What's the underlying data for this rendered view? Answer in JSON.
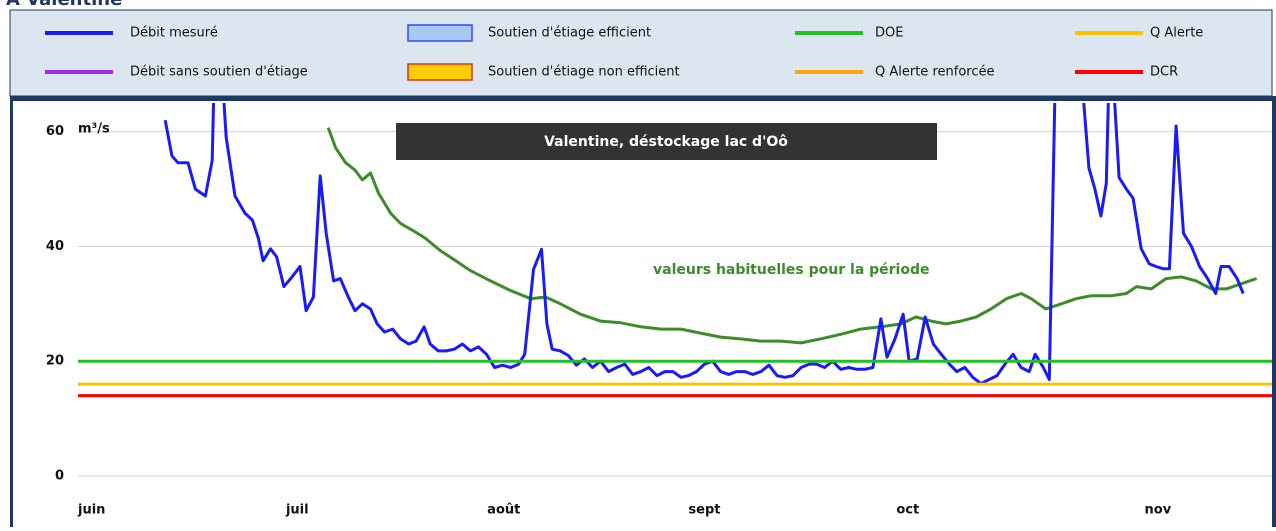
{
  "chart_data": {
    "type": "line",
    "title": "A Valentine",
    "banner": "Valentine, déstockage lac d'Oô",
    "y_unit": "m³/s",
    "annotation": "valeurs habituelles pour la période",
    "ylim": [
      0,
      65
    ],
    "yticks": [
      0,
      20,
      40,
      60
    ],
    "xlim": [
      0,
      178
    ],
    "xticks": [
      {
        "value": 0,
        "label": "juin"
      },
      {
        "value": 31,
        "label": "juil"
      },
      {
        "value": 61,
        "label": "août"
      },
      {
        "value": 91,
        "label": "sept"
      },
      {
        "value": 122,
        "label": "oct"
      },
      {
        "value": 159,
        "label": "nov"
      }
    ],
    "grid": true,
    "series": [
      {
        "name": "Débit mesuré",
        "color": "#1a1aff",
        "style": "line",
        "x": [
          13.0,
          14.0,
          14.9,
          16.4,
          17.5,
          19.0,
          20.0,
          20.3,
          21.5,
          22.1,
          23.4,
          24.9,
          26.0,
          26.9,
          27.6,
          28.7,
          29.6,
          30.7,
          31.9,
          33.1,
          34.0,
          35.1,
          36.1,
          37.0,
          38.1,
          39.1,
          40.3,
          41.3,
          42.4,
          43.6,
          44.6,
          45.7,
          46.9,
          48.1,
          49.3,
          50.4,
          51.6,
          52.5,
          53.7,
          54.9,
          56.1,
          57.3,
          58.5,
          59.7,
          60.9,
          62.1,
          63.3,
          64.5,
          65.7,
          66.6,
          67.9,
          69.1,
          69.9,
          70.7,
          71.9,
          73.1,
          74.3,
          75.5,
          76.7,
          77.9,
          79.1,
          80.3,
          81.5,
          82.7,
          83.9,
          85.1,
          86.3,
          87.5,
          88.7,
          89.9,
          91.0,
          92.2,
          93.4,
          94.6,
          95.8,
          97.0,
          98.2,
          99.4,
          100.6,
          101.8,
          103.0,
          104.2,
          105.4,
          106.6,
          107.8,
          109.0,
          110.1,
          111.3,
          112.5,
          113.7,
          114.9,
          116.1,
          117.3,
          118.5,
          119.7,
          120.6,
          121.8,
          123.0,
          123.9,
          125.1,
          126.3,
          127.5,
          128.7,
          129.9,
          131.0,
          132.2,
          133.4,
          134.6,
          135.8,
          137.0,
          138.2,
          139.4,
          140.6,
          141.8,
          142.7,
          143.9,
          144.8,
          145.7,
          149.6,
          150.7,
          151.6,
          152.5,
          153.3,
          153.7,
          154.3,
          155.2,
          156.3,
          157.3,
          158.5,
          159.7,
          160.7,
          161.8,
          162.7,
          163.7,
          164.8,
          166.0,
          167.2,
          168.4,
          169.6,
          170.4,
          171.6,
          172.8,
          173.7
        ],
        "values": [
          62,
          55.8,
          54.6,
          54.6,
          50,
          48.8,
          55,
          70,
          70,
          59,
          48.8,
          45.8,
          44.6,
          41.4,
          37.5,
          39.6,
          38.2,
          33,
          34.7,
          36.5,
          28.8,
          31.2,
          52.3,
          42.3,
          34,
          34.4,
          31.2,
          28.8,
          30,
          29.1,
          26.5,
          25.1,
          25.6,
          23.9,
          23,
          23.5,
          26,
          23,
          21.8,
          21.8,
          22.1,
          23,
          21.8,
          22.5,
          21.2,
          18.9,
          19.3,
          18.9,
          19.5,
          21.2,
          36,
          39.5,
          26.5,
          22.1,
          21.8,
          21,
          19.3,
          20.4,
          18.9,
          20,
          18.2,
          18.9,
          19.5,
          17.7,
          18.2,
          18.9,
          17.5,
          18.2,
          18.2,
          17.2,
          17.5,
          18.2,
          19.5,
          20,
          18.2,
          17.7,
          18.2,
          18.2,
          17.7,
          18.2,
          19.3,
          17.5,
          17.2,
          17.5,
          18.9,
          19.5,
          19.5,
          18.9,
          20,
          18.6,
          18.9,
          18.6,
          18.6,
          18.9,
          27.4,
          20.7,
          23.9,
          28.2,
          20,
          20.4,
          27.7,
          23,
          21.2,
          19.5,
          18.2,
          18.9,
          17.2,
          16.1,
          16.8,
          17.5,
          19.5,
          21.2,
          18.9,
          18.2,
          21.2,
          18.9,
          16.8,
          70,
          70,
          53.7,
          50,
          45.3,
          51,
          70,
          70,
          52,
          50,
          48.4,
          39.6,
          37,
          36.5,
          36.1,
          36.1,
          61,
          42.3,
          40,
          36.5,
          34.4,
          31.8,
          36.5,
          36.5,
          34.4,
          31.8
        ]
      },
      {
        "name": "Soutien d'étiage efficient",
        "color": "#a9c9f2",
        "border": "#2a4bff",
        "style": "area"
      },
      {
        "name": "DOE",
        "color": "#22c020",
        "style": "hline",
        "value": 20
      },
      {
        "name": "Q Alerte",
        "color": "#ffc000",
        "style": "hline",
        "value": 16
      },
      {
        "name": "Débit sans soutien d'étiage",
        "color": "#9b30e6",
        "style": "line"
      },
      {
        "name": "Soutien d'étiage non efficient",
        "color": "#ffcc00",
        "border": "#e0301e",
        "style": "area"
      },
      {
        "name": "Q Alerte renforcée",
        "color": "#ffa500",
        "style": "hline"
      },
      {
        "name": "DCR",
        "color": "#ff0000",
        "style": "hline",
        "value": 14
      }
    ],
    "reference": {
      "color": "#3c8c2a",
      "x": [
        37.3,
        38.4,
        39.9,
        41.3,
        42.4,
        43.6,
        44.8,
        46.6,
        48.1,
        49.9,
        51.8,
        54.0,
        56.3,
        58.5,
        61.5,
        64.5,
        67.5,
        69.7,
        71.9,
        74.9,
        77.9,
        80.9,
        83.9,
        86.9,
        89.9,
        92.8,
        95.8,
        98.8,
        101.8,
        104.8,
        107.8,
        110.7,
        113.7,
        116.7,
        119.7,
        122.7,
        124.9,
        127.2,
        129.4,
        131.6,
        133.9,
        136.1,
        138.4,
        140.6,
        142.1,
        144.3,
        146.6,
        148.8,
        151.0,
        154.0,
        156.3,
        157.8,
        160.0,
        162.2,
        164.5,
        166.7,
        169.0,
        171.2,
        173.4,
        175.7
      ],
      "values": [
        60.7,
        57.2,
        54.6,
        53.3,
        51.6,
        52.8,
        49.3,
        45.8,
        44,
        42.8,
        41.4,
        39.3,
        37.5,
        35.8,
        34,
        32.3,
        30.9,
        31.2,
        30,
        28.2,
        27,
        26.7,
        26,
        25.6,
        25.6,
        24.9,
        24.2,
        23.9,
        23.5,
        23.5,
        23.2,
        23.9,
        24.7,
        25.6,
        26,
        26.5,
        27.7,
        27,
        26.5,
        27,
        27.7,
        29.1,
        30.9,
        31.8,
        30.9,
        29.1,
        30,
        30.9,
        31.4,
        31.4,
        31.8,
        33,
        32.6,
        34.4,
        34.7,
        34,
        32.6,
        32.6,
        33.5,
        34.4
      ]
    }
  }
}
